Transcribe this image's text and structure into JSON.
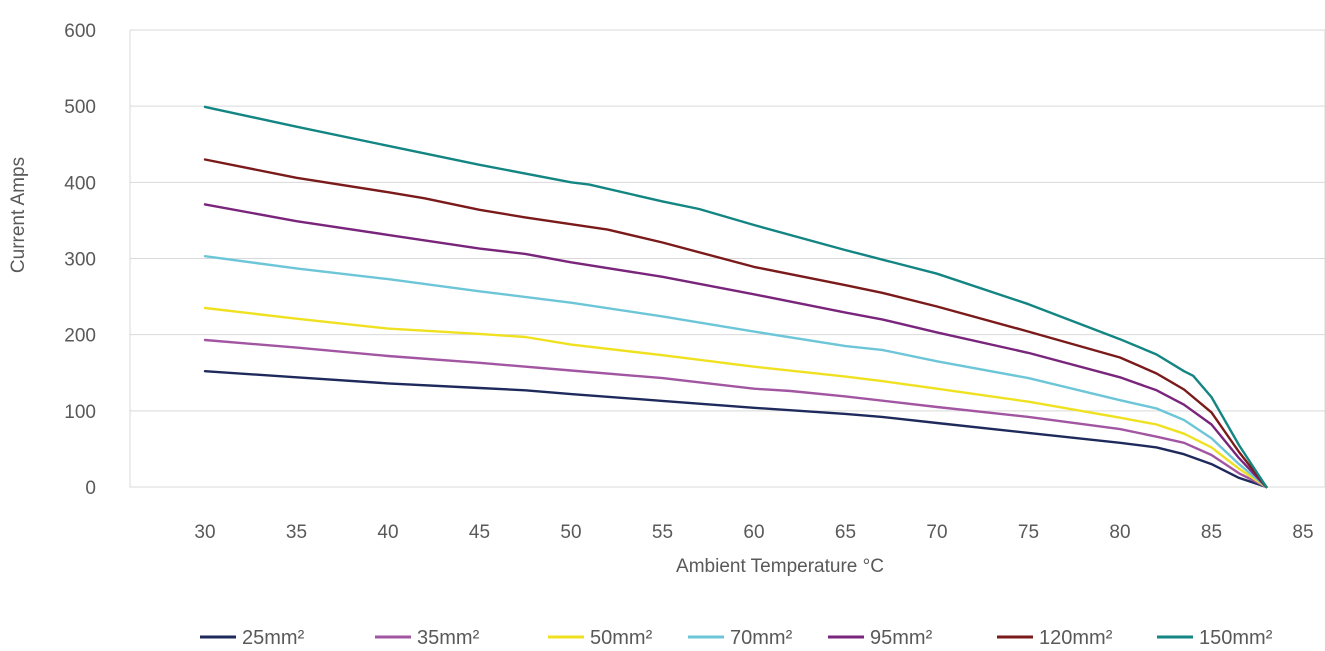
{
  "chart_data": {
    "type": "line",
    "xlabel": "Ambient Temperature °C",
    "ylabel": "Current Amps",
    "ylim": [
      0,
      600
    ],
    "yticks": [
      "0",
      "100",
      "200",
      "300",
      "400",
      "500",
      "600"
    ],
    "categories": [
      "30",
      "35",
      "40",
      "45",
      "50",
      "55",
      "60",
      "65",
      "70",
      "75",
      "80",
      "85",
      "85"
    ],
    "grid": "horizontal",
    "legend_position": "bottom",
    "series": [
      {
        "name": "25mm²",
        "color": "#1f2a5c",
        "points": [
          [
            30,
            152
          ],
          [
            35,
            144
          ],
          [
            40,
            136
          ],
          [
            45,
            130
          ],
          [
            47.5,
            127
          ],
          [
            50,
            122
          ],
          [
            55,
            113
          ],
          [
            60,
            104
          ],
          [
            65,
            96
          ],
          [
            67,
            92
          ],
          [
            70,
            84
          ],
          [
            75,
            71
          ],
          [
            80,
            58
          ],
          [
            82,
            52
          ],
          [
            83.5,
            43
          ],
          [
            85,
            30
          ],
          [
            86.5,
            12
          ],
          [
            88,
            0
          ]
        ]
      },
      {
        "name": "35mm²",
        "color": "#a256a2",
        "points": [
          [
            30,
            193
          ],
          [
            35,
            183
          ],
          [
            40,
            172
          ],
          [
            45,
            163
          ],
          [
            50,
            153
          ],
          [
            55,
            143
          ],
          [
            60,
            129
          ],
          [
            62,
            126
          ],
          [
            65,
            119
          ],
          [
            70,
            105
          ],
          [
            75,
            92
          ],
          [
            80,
            76
          ],
          [
            82,
            66
          ],
          [
            83.5,
            58
          ],
          [
            85,
            42
          ],
          [
            86.5,
            18
          ],
          [
            88,
            0
          ]
        ]
      },
      {
        "name": "50mm²",
        "color": "#f0e120",
        "points": [
          [
            30,
            235
          ],
          [
            35,
            221
          ],
          [
            40,
            208
          ],
          [
            45,
            201
          ],
          [
            47.5,
            197
          ],
          [
            50,
            187
          ],
          [
            55,
            173
          ],
          [
            60,
            158
          ],
          [
            65,
            145
          ],
          [
            67,
            139
          ],
          [
            70,
            129
          ],
          [
            75,
            112
          ],
          [
            80,
            91
          ],
          [
            82,
            82
          ],
          [
            83.5,
            70
          ],
          [
            85,
            52
          ],
          [
            86.5,
            24
          ],
          [
            88,
            0
          ]
        ]
      },
      {
        "name": "70mm²",
        "color": "#6cc6d8",
        "points": [
          [
            30,
            303
          ],
          [
            35,
            287
          ],
          [
            40,
            273
          ],
          [
            45,
            257
          ],
          [
            50,
            242
          ],
          [
            55,
            224
          ],
          [
            60,
            204
          ],
          [
            65,
            185
          ],
          [
            67,
            180
          ],
          [
            70,
            165
          ],
          [
            75,
            143
          ],
          [
            80,
            114
          ],
          [
            82,
            103
          ],
          [
            83.5,
            88
          ],
          [
            85,
            64
          ],
          [
            86.5,
            30
          ],
          [
            88,
            0
          ]
        ]
      },
      {
        "name": "95mm²",
        "color": "#7a257c",
        "points": [
          [
            30,
            371
          ],
          [
            35,
            349
          ],
          [
            40,
            331
          ],
          [
            45,
            313
          ],
          [
            47.5,
            306
          ],
          [
            50,
            295
          ],
          [
            55,
            276
          ],
          [
            60,
            253
          ],
          [
            65,
            229
          ],
          [
            67,
            220
          ],
          [
            70,
            203
          ],
          [
            75,
            176
          ],
          [
            80,
            144
          ],
          [
            82,
            127
          ],
          [
            83.5,
            108
          ],
          [
            85,
            82
          ],
          [
            86.5,
            38
          ],
          [
            88,
            0
          ]
        ]
      },
      {
        "name": "120mm²",
        "color": "#7b1a1a",
        "points": [
          [
            30,
            430
          ],
          [
            35,
            406
          ],
          [
            40,
            387
          ],
          [
            42,
            379
          ],
          [
            45,
            364
          ],
          [
            47.5,
            354
          ],
          [
            50,
            345
          ],
          [
            52,
            338
          ],
          [
            55,
            321
          ],
          [
            60,
            289
          ],
          [
            65,
            265
          ],
          [
            67,
            255
          ],
          [
            70,
            237
          ],
          [
            75,
            204
          ],
          [
            80,
            170
          ],
          [
            82,
            149
          ],
          [
            83.5,
            128
          ],
          [
            85,
            98
          ],
          [
            86.5,
            46
          ],
          [
            88,
            0
          ]
        ]
      },
      {
        "name": "150mm²",
        "color": "#138582",
        "points": [
          [
            30,
            499
          ],
          [
            35,
            473
          ],
          [
            40,
            448
          ],
          [
            45,
            423
          ],
          [
            50,
            400
          ],
          [
            51,
            397
          ],
          [
            55,
            375
          ],
          [
            57,
            365
          ],
          [
            60,
            344
          ],
          [
            65,
            311
          ],
          [
            70,
            280
          ],
          [
            75,
            240
          ],
          [
            80,
            194
          ],
          [
            82,
            174
          ],
          [
            83.5,
            152
          ],
          [
            84,
            146
          ],
          [
            85,
            118
          ],
          [
            86.5,
            55
          ],
          [
            88,
            0
          ]
        ]
      }
    ]
  }
}
